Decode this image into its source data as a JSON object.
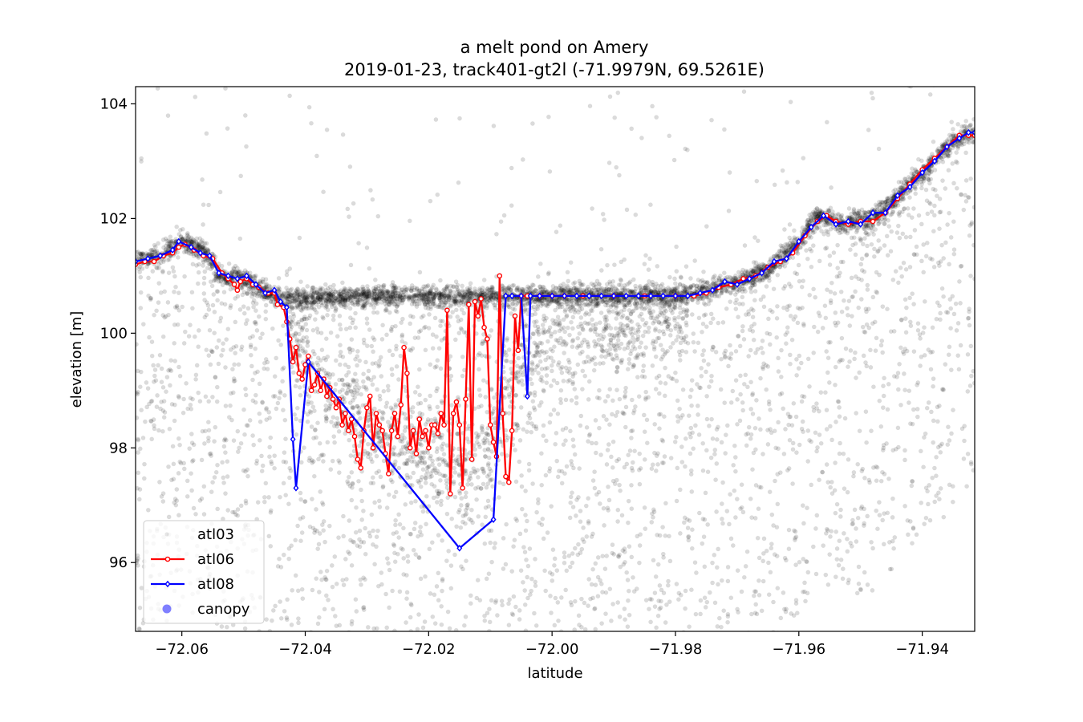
{
  "chart_data": {
    "type": "scatter",
    "title": "a melt pond on Amery",
    "subtitle": "2019-01-23, track401-gt2l (-71.9979N, 69.5261E)",
    "xlabel": "latitude",
    "ylabel": "elevation [m]",
    "xlim": [
      -72.0675,
      -71.9315
    ],
    "ylim": [
      94.8,
      104.3
    ],
    "xticks": [
      -72.06,
      -72.04,
      -72.02,
      -72.0,
      -71.98,
      -71.96,
      -71.94
    ],
    "xtick_labels": [
      "−72.06",
      "−72.04",
      "−72.02",
      "−72.00",
      "−71.98",
      "−71.96",
      "−71.94"
    ],
    "yticks": [
      96,
      98,
      100,
      102,
      104
    ],
    "ytick_labels": [
      "96",
      "98",
      "100",
      "102",
      "104"
    ],
    "grid": false,
    "legend_position": "lower-left",
    "colors": {
      "atl03": "#000000",
      "atl06": "#ff0000",
      "atl08": "#0000ff",
      "canopy": "#0000ff"
    },
    "series": [
      {
        "name": "atl03",
        "kind": "scatter-cloud",
        "surface_profile": [
          [
            -72.0675,
            101.25
          ],
          [
            -72.064,
            101.35
          ],
          [
            -72.06,
            101.6
          ],
          [
            -72.056,
            101.4
          ],
          [
            -72.054,
            101.0
          ],
          [
            -72.05,
            100.95
          ],
          [
            -72.046,
            100.7
          ],
          [
            -72.043,
            100.6
          ],
          [
            -72.03,
            100.65
          ],
          [
            -72.0,
            100.65
          ],
          [
            -71.98,
            100.65
          ],
          [
            -71.975,
            100.75
          ],
          [
            -71.97,
            100.9
          ],
          [
            -71.965,
            101.1
          ],
          [
            -71.96,
            101.6
          ],
          [
            -71.957,
            102.05
          ],
          [
            -71.953,
            101.9
          ],
          [
            -71.948,
            102.0
          ],
          [
            -71.945,
            102.3
          ],
          [
            -71.94,
            102.8
          ],
          [
            -71.935,
            103.35
          ],
          [
            -71.9315,
            103.55
          ]
        ],
        "pond_bottom_profile": [
          [
            -72.043,
            100.5
          ],
          [
            -72.04,
            99.4
          ],
          [
            -72.035,
            98.9
          ],
          [
            -72.03,
            98.4
          ],
          [
            -72.025,
            98.0
          ],
          [
            -72.02,
            97.8
          ],
          [
            -72.015,
            97.7
          ],
          [
            -72.01,
            98.0
          ],
          [
            -72.007,
            99.0
          ],
          [
            -72.003,
            99.8
          ],
          [
            -71.995,
            100.1
          ],
          [
            -71.985,
            100.2
          ],
          [
            -71.978,
            100.4
          ]
        ]
      },
      {
        "name": "atl06",
        "kind": "line-markers",
        "points": [
          [
            -72.0675,
            101.2
          ],
          [
            -72.066,
            101.25
          ],
          [
            -72.0645,
            101.25
          ],
          [
            -72.063,
            101.35
          ],
          [
            -72.0615,
            101.4
          ],
          [
            -72.0605,
            101.5
          ],
          [
            -72.0595,
            101.55
          ],
          [
            -72.058,
            101.45
          ],
          [
            -72.0565,
            101.35
          ],
          [
            -72.055,
            101.3
          ],
          [
            -72.0535,
            101.05
          ],
          [
            -72.0525,
            100.95
          ],
          [
            -72.0515,
            100.85
          ],
          [
            -72.051,
            100.75
          ],
          [
            -72.0505,
            100.9
          ],
          [
            -72.0495,
            100.95
          ],
          [
            -72.0485,
            100.85
          ],
          [
            -72.0475,
            100.8
          ],
          [
            -72.046,
            100.7
          ],
          [
            -72.045,
            100.7
          ],
          [
            -72.0445,
            100.5
          ],
          [
            -72.0435,
            100.45
          ],
          [
            -72.043,
            100.2
          ],
          [
            -72.0425,
            99.9
          ],
          [
            -72.042,
            99.5
          ],
          [
            -72.0415,
            99.75
          ],
          [
            -72.041,
            99.3
          ],
          [
            -72.0405,
            99.2
          ],
          [
            -72.04,
            99.45
          ],
          [
            -72.0395,
            99.6
          ],
          [
            -72.039,
            99.0
          ],
          [
            -72.0385,
            99.1
          ],
          [
            -72.038,
            99.3
          ],
          [
            -72.0375,
            99.0
          ],
          [
            -72.037,
            99.2
          ],
          [
            -72.0365,
            98.9
          ],
          [
            -72.036,
            99.05
          ],
          [
            -72.0355,
            98.85
          ],
          [
            -72.035,
            98.7
          ],
          [
            -72.0345,
            98.85
          ],
          [
            -72.034,
            98.4
          ],
          [
            -72.0335,
            98.6
          ],
          [
            -72.033,
            98.3
          ],
          [
            -72.0325,
            98.5
          ],
          [
            -72.032,
            98.2
          ],
          [
            -72.0315,
            97.8
          ],
          [
            -72.031,
            97.65
          ],
          [
            -72.0305,
            98.3
          ],
          [
            -72.03,
            98.7
          ],
          [
            -72.0295,
            98.9
          ],
          [
            -72.029,
            98.0
          ],
          [
            -72.0285,
            98.6
          ],
          [
            -72.028,
            98.4
          ],
          [
            -72.0275,
            98.3
          ],
          [
            -72.027,
            97.9
          ],
          [
            -72.0265,
            97.55
          ],
          [
            -72.026,
            98.3
          ],
          [
            -72.0255,
            98.6
          ],
          [
            -72.025,
            98.2
          ],
          [
            -72.0245,
            98.75
          ],
          [
            -72.024,
            99.75
          ],
          [
            -72.0235,
            99.3
          ],
          [
            -72.023,
            98.0
          ],
          [
            -72.0225,
            98.3
          ],
          [
            -72.022,
            97.9
          ],
          [
            -72.0215,
            98.5
          ],
          [
            -72.021,
            98.2
          ],
          [
            -72.0205,
            98.3
          ],
          [
            -72.02,
            98.0
          ],
          [
            -72.0195,
            98.4
          ],
          [
            -72.019,
            98.4
          ],
          [
            -72.0185,
            98.25
          ],
          [
            -72.018,
            98.6
          ],
          [
            -72.0175,
            98.4
          ],
          [
            -72.017,
            100.4
          ],
          [
            -72.0165,
            97.2
          ],
          [
            -72.016,
            98.6
          ],
          [
            -72.0155,
            98.8
          ],
          [
            -72.015,
            98.4
          ],
          [
            -72.0145,
            97.3
          ],
          [
            -72.014,
            98.85
          ],
          [
            -72.0135,
            100.5
          ],
          [
            -72.013,
            97.8
          ],
          [
            -72.0125,
            100.55
          ],
          [
            -72.012,
            100.3
          ],
          [
            -72.0115,
            100.6
          ],
          [
            -72.011,
            100.1
          ],
          [
            -72.0105,
            99.9
          ],
          [
            -72.01,
            98.4
          ],
          [
            -72.0095,
            98.1
          ],
          [
            -72.009,
            97.85
          ],
          [
            -72.0085,
            101.0
          ],
          [
            -72.008,
            98.6
          ],
          [
            -72.0075,
            97.5
          ],
          [
            -72.007,
            97.4
          ],
          [
            -72.0065,
            98.3
          ],
          [
            -72.006,
            100.3
          ],
          [
            -72.0055,
            99.7
          ],
          [
            -72.005,
            100.65
          ],
          [
            -72.004,
            100.65
          ],
          [
            -72.002,
            100.65
          ],
          [
            -72.0,
            100.65
          ],
          [
            -71.998,
            100.65
          ],
          [
            -71.995,
            100.65
          ],
          [
            -71.99,
            100.65
          ],
          [
            -71.985,
            100.65
          ],
          [
            -71.98,
            100.65
          ],
          [
            -71.977,
            100.65
          ],
          [
            -71.975,
            100.7
          ],
          [
            -71.973,
            100.8
          ],
          [
            -71.971,
            100.85
          ],
          [
            -71.969,
            100.95
          ],
          [
            -71.967,
            101.0
          ],
          [
            -71.965,
            101.15
          ],
          [
            -71.963,
            101.25
          ],
          [
            -71.961,
            101.4
          ],
          [
            -71.959,
            101.7
          ],
          [
            -71.957,
            101.95
          ],
          [
            -71.9555,
            102.05
          ],
          [
            -71.954,
            101.95
          ],
          [
            -71.952,
            101.9
          ],
          [
            -71.95,
            101.95
          ],
          [
            -71.948,
            101.95
          ],
          [
            -71.946,
            102.1
          ],
          [
            -71.944,
            102.35
          ],
          [
            -71.942,
            102.6
          ],
          [
            -71.94,
            102.85
          ],
          [
            -71.938,
            103.05
          ],
          [
            -71.936,
            103.25
          ],
          [
            -71.934,
            103.45
          ],
          [
            -71.9325,
            103.45
          ],
          [
            -71.9315,
            103.45
          ]
        ]
      },
      {
        "name": "atl08",
        "kind": "line-markers",
        "points": [
          [
            -72.0675,
            101.25
          ],
          [
            -72.0655,
            101.3
          ],
          [
            -72.0635,
            101.35
          ],
          [
            -72.0615,
            101.45
          ],
          [
            -72.0605,
            101.6
          ],
          [
            -72.0585,
            101.5
          ],
          [
            -72.057,
            101.4
          ],
          [
            -72.0555,
            101.35
          ],
          [
            -72.054,
            101.05
          ],
          [
            -72.0525,
            101.0
          ],
          [
            -72.051,
            100.95
          ],
          [
            -72.0495,
            101.0
          ],
          [
            -72.048,
            100.85
          ],
          [
            -72.0465,
            100.7
          ],
          [
            -72.045,
            100.75
          ],
          [
            -72.044,
            100.55
          ],
          [
            -72.043,
            100.45
          ],
          [
            -72.042,
            98.15
          ],
          [
            -72.0415,
            97.3
          ],
          [
            -72.0395,
            99.5
          ],
          [
            -72.015,
            96.25
          ],
          [
            -72.0095,
            96.75
          ],
          [
            -72.0075,
            100.65
          ],
          [
            -72.0065,
            100.65
          ],
          [
            -72.005,
            100.65
          ],
          [
            -72.004,
            98.9
          ],
          [
            -72.0035,
            100.65
          ],
          [
            -72.002,
            100.65
          ],
          [
            -72.0,
            100.65
          ],
          [
            -71.998,
            100.65
          ],
          [
            -71.996,
            100.65
          ],
          [
            -71.994,
            100.65
          ],
          [
            -71.992,
            100.65
          ],
          [
            -71.99,
            100.65
          ],
          [
            -71.988,
            100.65
          ],
          [
            -71.986,
            100.65
          ],
          [
            -71.984,
            100.65
          ],
          [
            -71.982,
            100.65
          ],
          [
            -71.98,
            100.65
          ],
          [
            -71.978,
            100.65
          ],
          [
            -71.976,
            100.7
          ],
          [
            -71.974,
            100.75
          ],
          [
            -71.972,
            100.9
          ],
          [
            -71.97,
            100.85
          ],
          [
            -71.968,
            100.95
          ],
          [
            -71.966,
            101.05
          ],
          [
            -71.964,
            101.25
          ],
          [
            -71.962,
            101.3
          ],
          [
            -71.96,
            101.6
          ],
          [
            -71.958,
            101.85
          ],
          [
            -71.956,
            102.05
          ],
          [
            -71.954,
            101.9
          ],
          [
            -71.952,
            101.95
          ],
          [
            -71.95,
            101.9
          ],
          [
            -71.948,
            102.1
          ],
          [
            -71.946,
            102.1
          ],
          [
            -71.944,
            102.4
          ],
          [
            -71.942,
            102.55
          ],
          [
            -71.94,
            102.8
          ],
          [
            -71.938,
            103.0
          ],
          [
            -71.936,
            103.25
          ],
          [
            -71.934,
            103.4
          ],
          [
            -71.9325,
            103.5
          ],
          [
            -71.9315,
            103.5
          ]
        ]
      },
      {
        "name": "canopy",
        "kind": "scatter",
        "points": []
      }
    ]
  }
}
